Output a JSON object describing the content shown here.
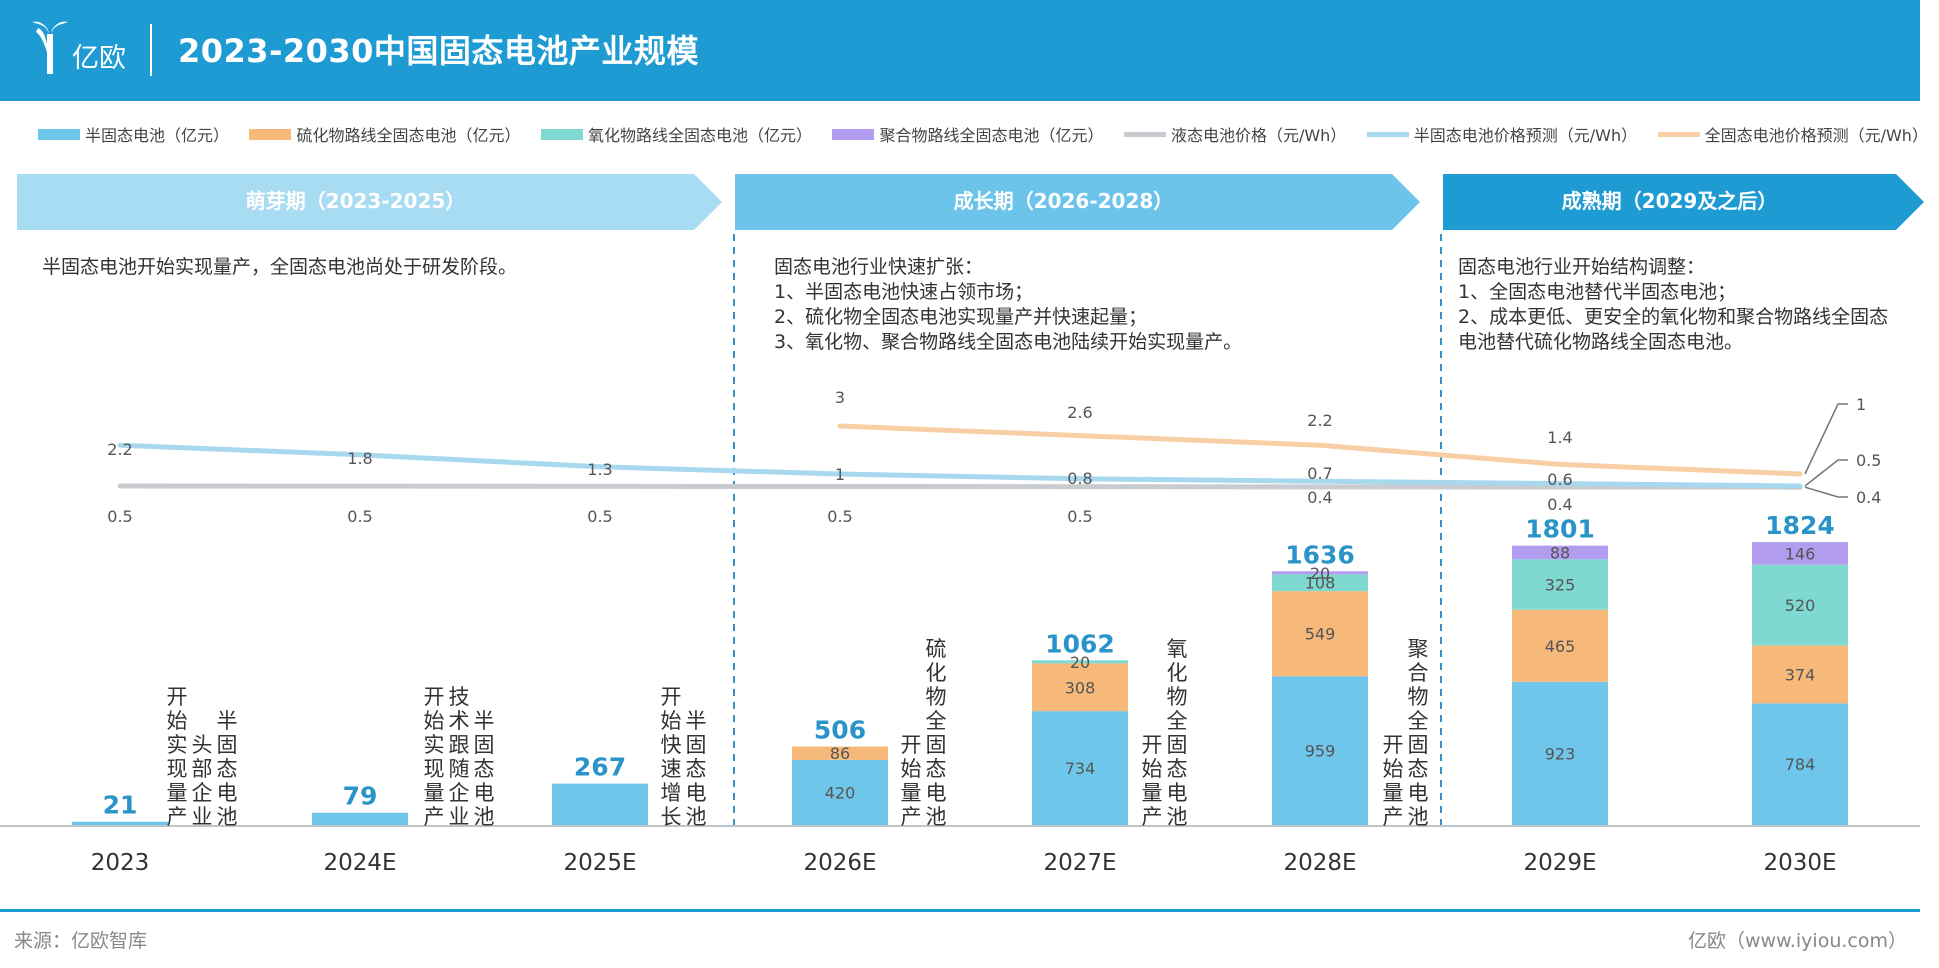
{
  "header": {
    "logo_text": "亿欧",
    "title": "2023-2030中国固态电池产业规模"
  },
  "legend": [
    {
      "label": "半固态电池（亿元）",
      "color": "#6ec6ea",
      "kind": "bar"
    },
    {
      "label": "硫化物路线全固态电池（亿元）",
      "color": "#f7b97a",
      "kind": "bar"
    },
    {
      "label": "氧化物路线全固态电池（亿元）",
      "color": "#7fd9d0",
      "kind": "bar"
    },
    {
      "label": "聚合物路线全固态电池（亿元）",
      "color": "#b19cf0",
      "kind": "bar"
    },
    {
      "label": "液态电池价格（元/Wh）",
      "color": "#c8cbcf",
      "kind": "line"
    },
    {
      "label": "半固态电池价格预测（元/Wh）",
      "color": "#a8d8ee",
      "kind": "line"
    },
    {
      "label": "全固态电池价格预测（元/Wh）",
      "color": "#f8cfa4",
      "kind": "line"
    }
  ],
  "phases": [
    {
      "label": "萌芽期（2023-2025）",
      "color": "#a8dcf2"
    },
    {
      "label": "成长期（2026-2028）",
      "color": "#6cc4ea"
    },
    {
      "label": "成熟期（2029及之后）",
      "color": "#1f9bd4"
    }
  ],
  "phase_descriptions": [
    {
      "lines": [
        "半固态电池开始实现量产，全固态电池尚处于研发阶段。"
      ]
    },
    {
      "lines": [
        "固态电池行业快速扩张：",
        "1、半固态电池快速占领市场；",
        "2、硫化物全固态电池实现量产并快速起量；",
        "3、氧化物、聚合物路线全固态电池陆续开始实现量产。"
      ]
    },
    {
      "lines": [
        "固态电池行业开始结构调整：",
        "1、全固态电池替代半固态电池；",
        "2、成本更低、更安全的氧化物和聚合物路线全固态",
        "电池替代硫化物路线全固态电池。"
      ]
    }
  ],
  "chart_data": {
    "type": "bar",
    "stacked": true,
    "categories": [
      "2023",
      "2024E",
      "2025E",
      "2026E",
      "2027E",
      "2028E",
      "2029E",
      "2030E"
    ],
    "series": [
      {
        "name": "半固态电池（亿元）",
        "color": "#6ec6ea",
        "values": [
          21,
          79,
          267,
          420,
          734,
          959,
          923,
          784
        ]
      },
      {
        "name": "硫化物路线全固态电池（亿元）",
        "color": "#f7b97a",
        "values": [
          0,
          0,
          0,
          86,
          308,
          549,
          465,
          374
        ]
      },
      {
        "name": "氧化物路线全固态电池（亿元）",
        "color": "#7fd9d0",
        "values": [
          0,
          0,
          0,
          0,
          20,
          108,
          325,
          520
        ]
      },
      {
        "name": "聚合物路线全固态电池（亿元）",
        "color": "#b19cf0",
        "values": [
          0,
          0,
          0,
          0,
          0,
          20,
          88,
          146
        ]
      }
    ],
    "totals": [
      21,
      79,
      267,
      506,
      1062,
      1636,
      1801,
      1824
    ],
    "line_series": [
      {
        "name": "液态电池价格（元/Wh）",
        "color": "#c8cbcf",
        "values": [
          0.5,
          0.5,
          0.5,
          0.5,
          0.5,
          0.4,
          0.4,
          0.4
        ]
      },
      {
        "name": "半固态电池价格预测（元/Wh）",
        "color": "#a8d8ee",
        "values": [
          2.2,
          1.8,
          1.3,
          1,
          0.8,
          0.7,
          0.6,
          0.5
        ]
      },
      {
        "name": "全固态电池价格预测（元/Wh）",
        "color": "#f8cfa4",
        "values": [
          null,
          null,
          null,
          3,
          2.6,
          2.2,
          1.4,
          1
        ]
      }
    ],
    "line_labels": {
      "liquid": [
        "0.5",
        "0.5",
        "0.5",
        "0.5",
        "0.5",
        "0.4",
        "0.4",
        "0.4"
      ],
      "semi": [
        "2.2",
        "1.8",
        "1.3",
        "1",
        "0.8",
        "0.7",
        "0.6",
        "0.5"
      ],
      "solid": [
        "",
        "",
        "",
        "3",
        "2.6",
        "2.2",
        "1.4",
        "1"
      ]
    },
    "milestones": [
      {
        "cat": 0,
        "cols": [
          "半固态电池",
          "头部企业",
          "开始实现量产"
        ]
      },
      {
        "cat": 1,
        "cols": [
          "半固态电池",
          "技术跟随企业",
          "开始实现量产"
        ]
      },
      {
        "cat": 2,
        "cols": [
          "半固态电池",
          "开始快速增长"
        ]
      },
      {
        "cat": 3,
        "cols": [
          "硫化物全固态电池",
          "开始量产"
        ]
      },
      {
        "cat": 4,
        "cols": [
          "氧化物全固态电池",
          "开始量产"
        ]
      },
      {
        "cat": 5,
        "cols": [
          "聚合物全固态电池",
          "开始量产"
        ]
      }
    ]
  },
  "footer": {
    "source": "来源：亿欧智库",
    "site": "亿欧（www.iyiou.com）"
  }
}
